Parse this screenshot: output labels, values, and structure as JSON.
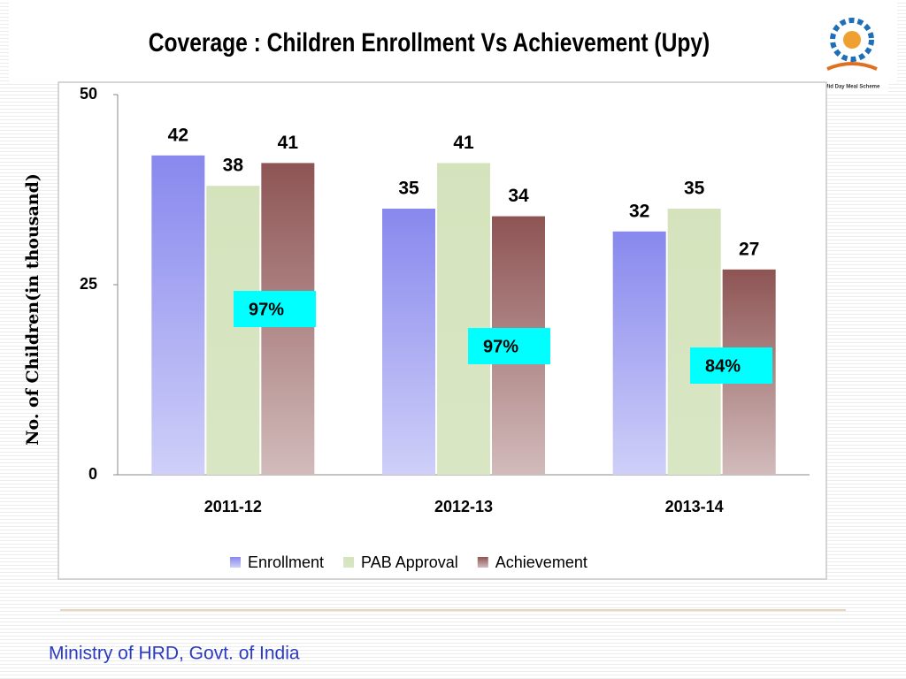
{
  "title": "Coverage : Children Enrollment Vs Achievement (Upy)",
  "logo_text": "Mid Day Meal Scheme",
  "footer": "Ministry of HRD, Govt. of India",
  "chart_data": {
    "type": "bar",
    "ylabel": "No. of Children(in thousand)",
    "categories": [
      "2011-12",
      "2012-13",
      "2013-14"
    ],
    "series": [
      {
        "name": "Enrollment",
        "color": "#8888ee",
        "values": [
          42,
          35,
          32
        ]
      },
      {
        "name": "PAB Approval",
        "color": "#d5e3bd",
        "values": [
          38,
          41,
          35
        ]
      },
      {
        "name": "Achievement",
        "color": "#8e5454",
        "values": [
          41,
          34,
          27
        ]
      }
    ],
    "annotations": [
      "97%",
      "97%",
      "84%"
    ],
    "annotation_color": "#00ffff",
    "ylim": [
      0,
      50
    ],
    "yticks": [
      0,
      25,
      50
    ],
    "grid": false,
    "legend": "bottom"
  }
}
